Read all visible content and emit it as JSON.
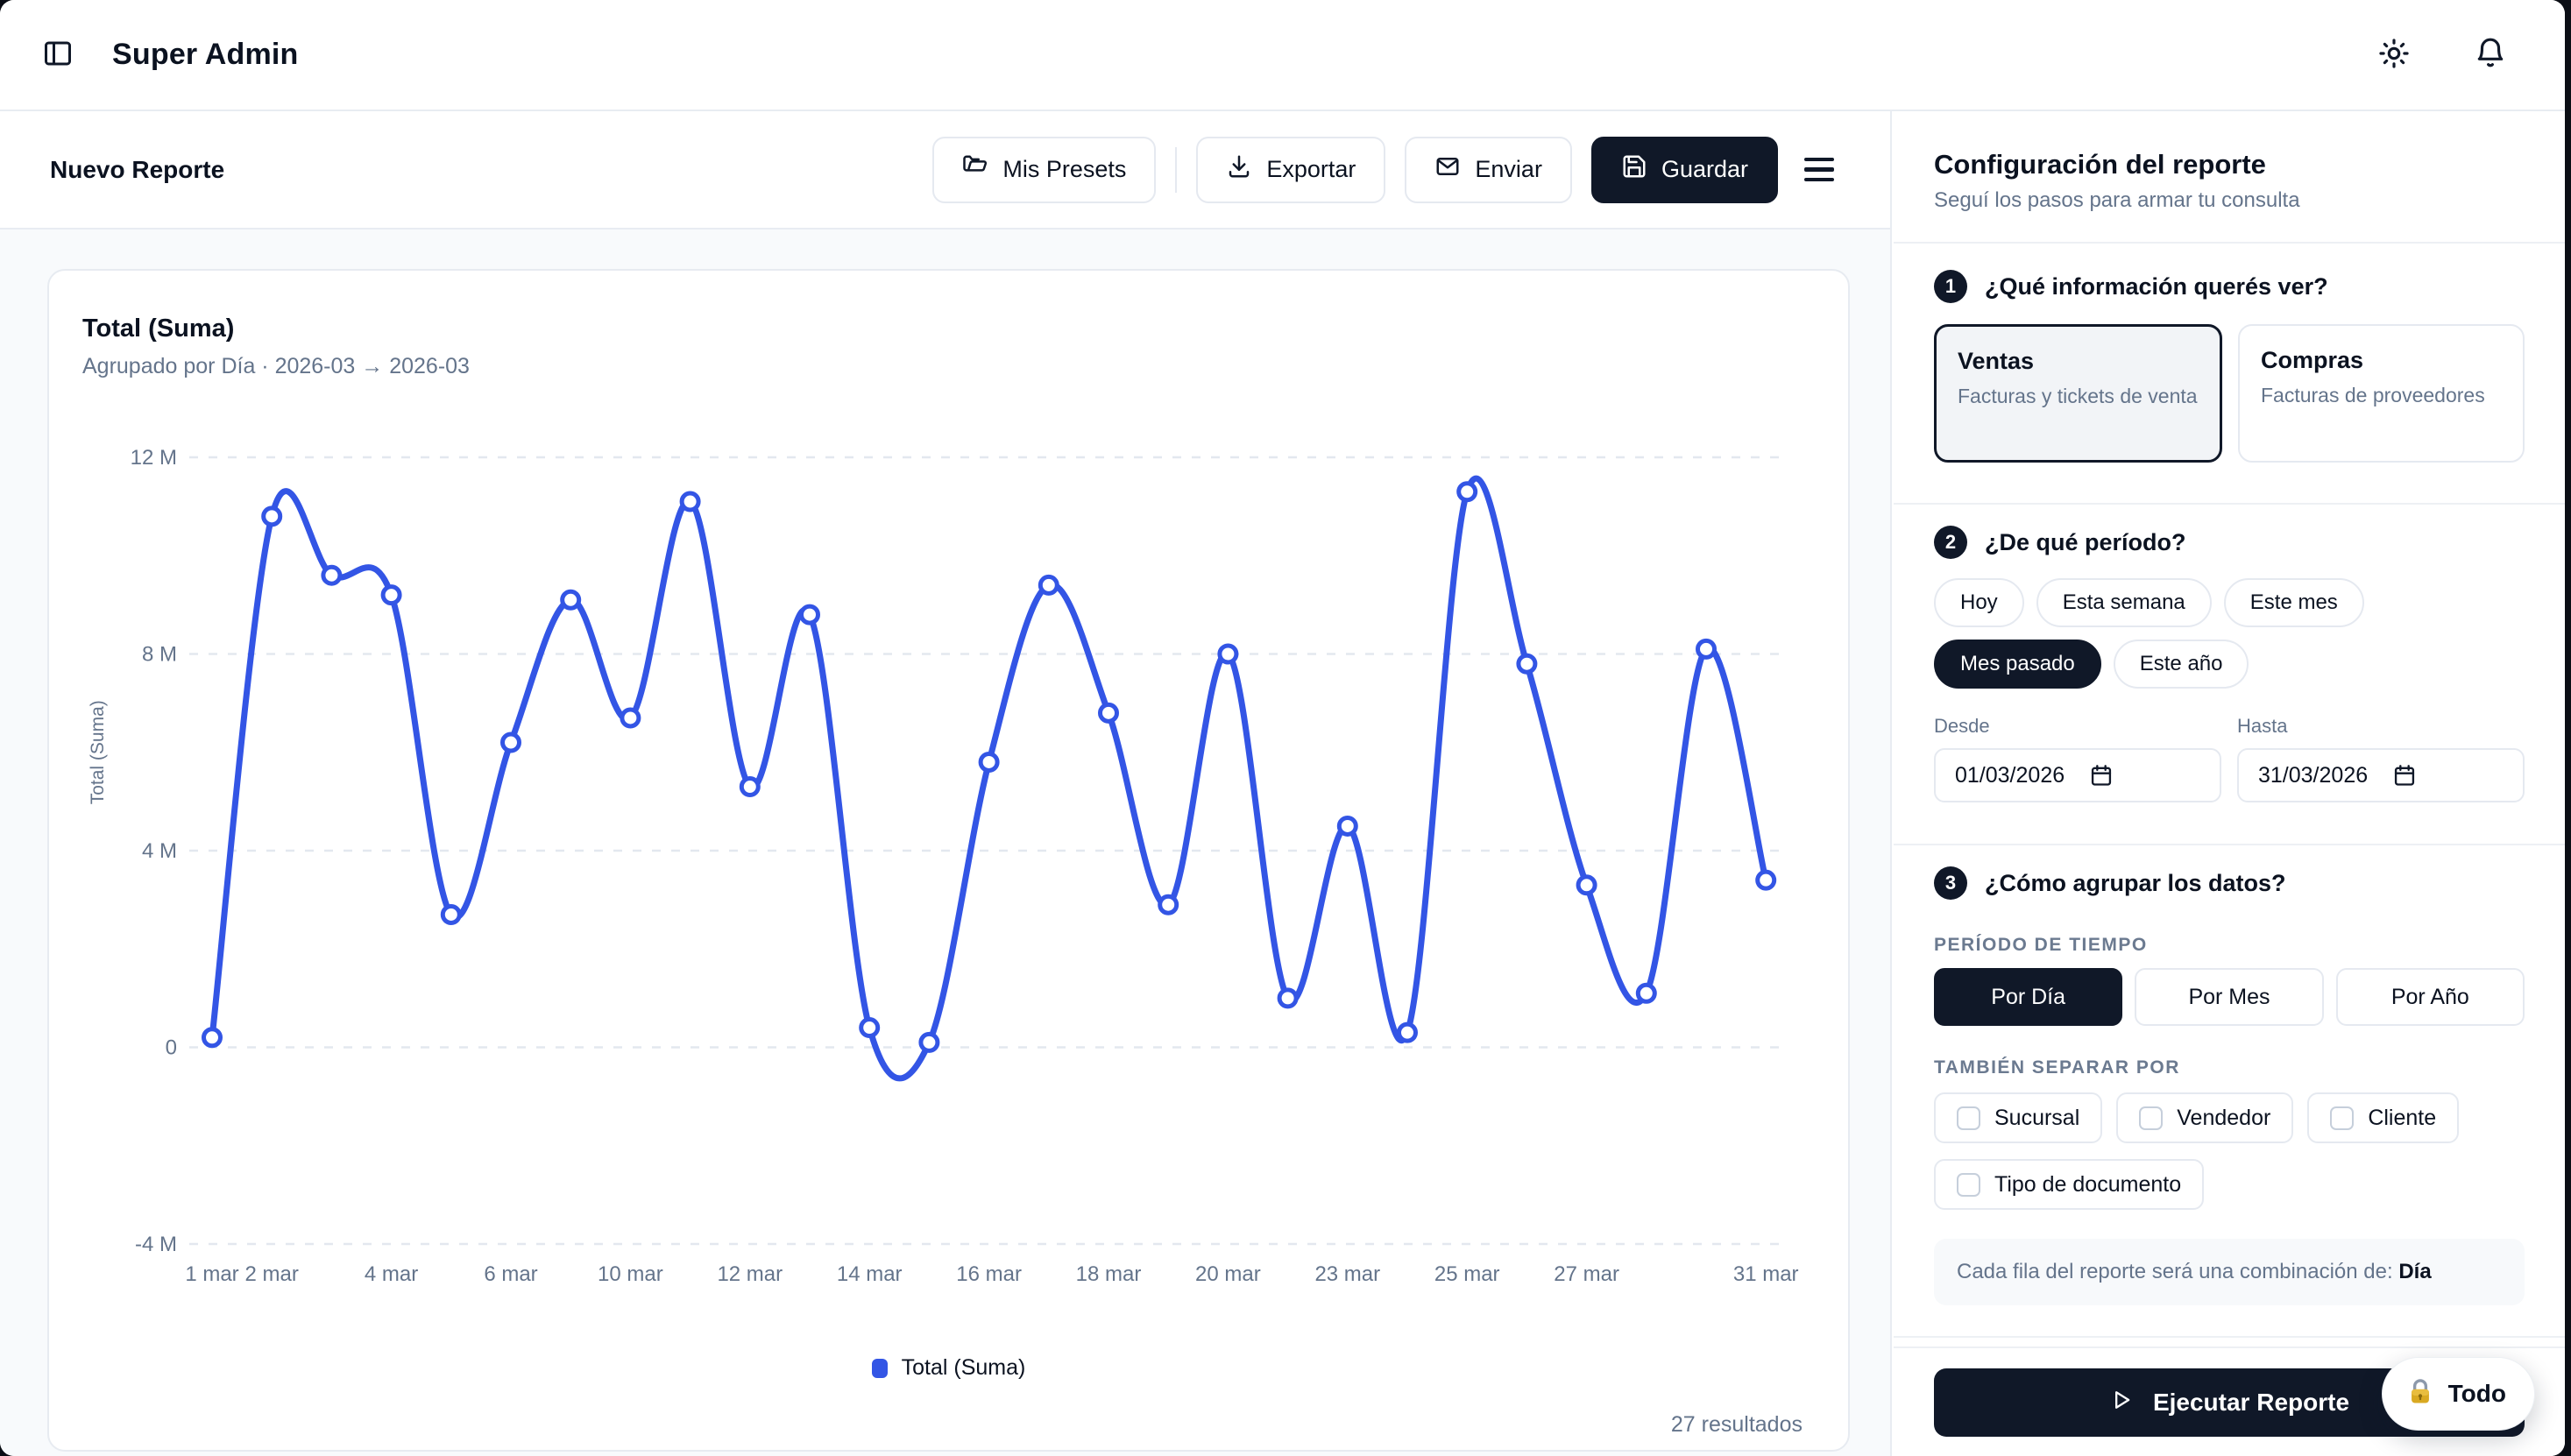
{
  "header": {
    "app_title": "Super Admin"
  },
  "toolbar": {
    "page_title": "Nuevo Reporte",
    "presets_label": "Mis Presets",
    "export_label": "Exportar",
    "send_label": "Enviar",
    "save_label": "Guardar"
  },
  "chart_card": {
    "title": "Total (Suma)",
    "subtitle": "Agrupado por Día · 2026-03 → 2026-03",
    "y_axis_title": "Total (Suma)",
    "legend_label": "Total (Suma)",
    "results_count": "27 resultados"
  },
  "chart_data": {
    "type": "line",
    "title": "Total (Suma)",
    "series": [
      {
        "name": "Total (Suma)",
        "unit": "millions",
        "values": [
          0.2,
          10.8,
          9.6,
          9.2,
          2.7,
          6.2,
          9.1,
          6.7,
          11.1,
          5.3,
          8.8,
          0.4,
          0.1,
          5.8,
          9.4,
          6.8,
          2.9,
          8.0,
          1.0,
          4.5,
          0.3,
          11.3,
          7.8,
          3.3,
          1.1,
          8.1,
          3.4
        ]
      }
    ],
    "x": [
      "1 mar",
      "2 mar",
      "3 mar",
      "4 mar",
      "5 mar",
      "6 mar",
      "9 mar",
      "10 mar",
      "11 mar",
      "12 mar",
      "13 mar",
      "14 mar",
      "15 mar",
      "16 mar",
      "17 mar",
      "18 mar",
      "19 mar",
      "20 mar",
      "21 mar",
      "23 mar",
      "24 mar",
      "25 mar",
      "26 mar",
      "27 mar",
      "28 mar",
      "30 mar",
      "31 mar"
    ],
    "shown_tick_indices": [
      0,
      1,
      3,
      5,
      7,
      9,
      11,
      13,
      15,
      17,
      19,
      21,
      23,
      26
    ],
    "yticks": [
      {
        "label": "12 M",
        "value": 12
      },
      {
        "label": "8 M",
        "value": 8
      },
      {
        "label": "4 M",
        "value": 4
      },
      {
        "label": "0",
        "value": 0
      },
      {
        "label": "-4 M",
        "value": -4
      }
    ],
    "ylim": [
      -4,
      12
    ],
    "grid": "horizontal-dashed",
    "legend_position": "bottom",
    "line_color": "#3355e5",
    "marker": "open-circle"
  },
  "sidebar": {
    "title": "Configuración del reporte",
    "subtitle": "Seguí los pasos para armar tu consulta",
    "step1": {
      "number": "1",
      "question": "¿Qué información querés ver?",
      "options": [
        {
          "title": "Ventas",
          "desc": "Facturas y tickets de venta",
          "selected": true
        },
        {
          "title": "Compras",
          "desc": "Facturas de proveedores",
          "selected": false
        }
      ]
    },
    "step2": {
      "number": "2",
      "question": "¿De qué período?",
      "chips": [
        "Hoy",
        "Esta semana",
        "Este mes",
        "Mes pasado",
        "Este año"
      ],
      "selected_chip": "Mes pasado",
      "from_label": "Desde",
      "from_value": "01/03/2026",
      "to_label": "Hasta",
      "to_value": "31/03/2026"
    },
    "step3": {
      "number": "3",
      "question": "¿Cómo agrupar los datos?",
      "period_section_label": "PERÍODO DE TIEMPO",
      "period_options": [
        "Por Día",
        "Por Mes",
        "Por Año"
      ],
      "selected_period": "Por Día",
      "separate_section_label": "TAMBIÉN SEPARAR POR",
      "separate_options": [
        "Sucursal",
        "Vendedor",
        "Cliente",
        "Tipo de documento"
      ],
      "note_prefix": "Cada fila del reporte será una combinación de: ",
      "note_strong": "Día"
    },
    "footer": {
      "run_label": "Ejecutar Reporte",
      "todo_label": "Todo"
    }
  },
  "icons": {
    "panel-left": "sidebar toggle",
    "sun": "theme toggle",
    "bell": "notifications",
    "folder": "presets",
    "download": "export",
    "mail": "send",
    "save": "guardar",
    "menu": "more options",
    "calendar": "date picker",
    "play": "run",
    "lock": "todo widget"
  },
  "colors": {
    "accent_blue": "#3355e5",
    "dark": "#101828",
    "muted": "#64748b",
    "border": "#e5e9f0",
    "surface": "#f8fafc"
  }
}
